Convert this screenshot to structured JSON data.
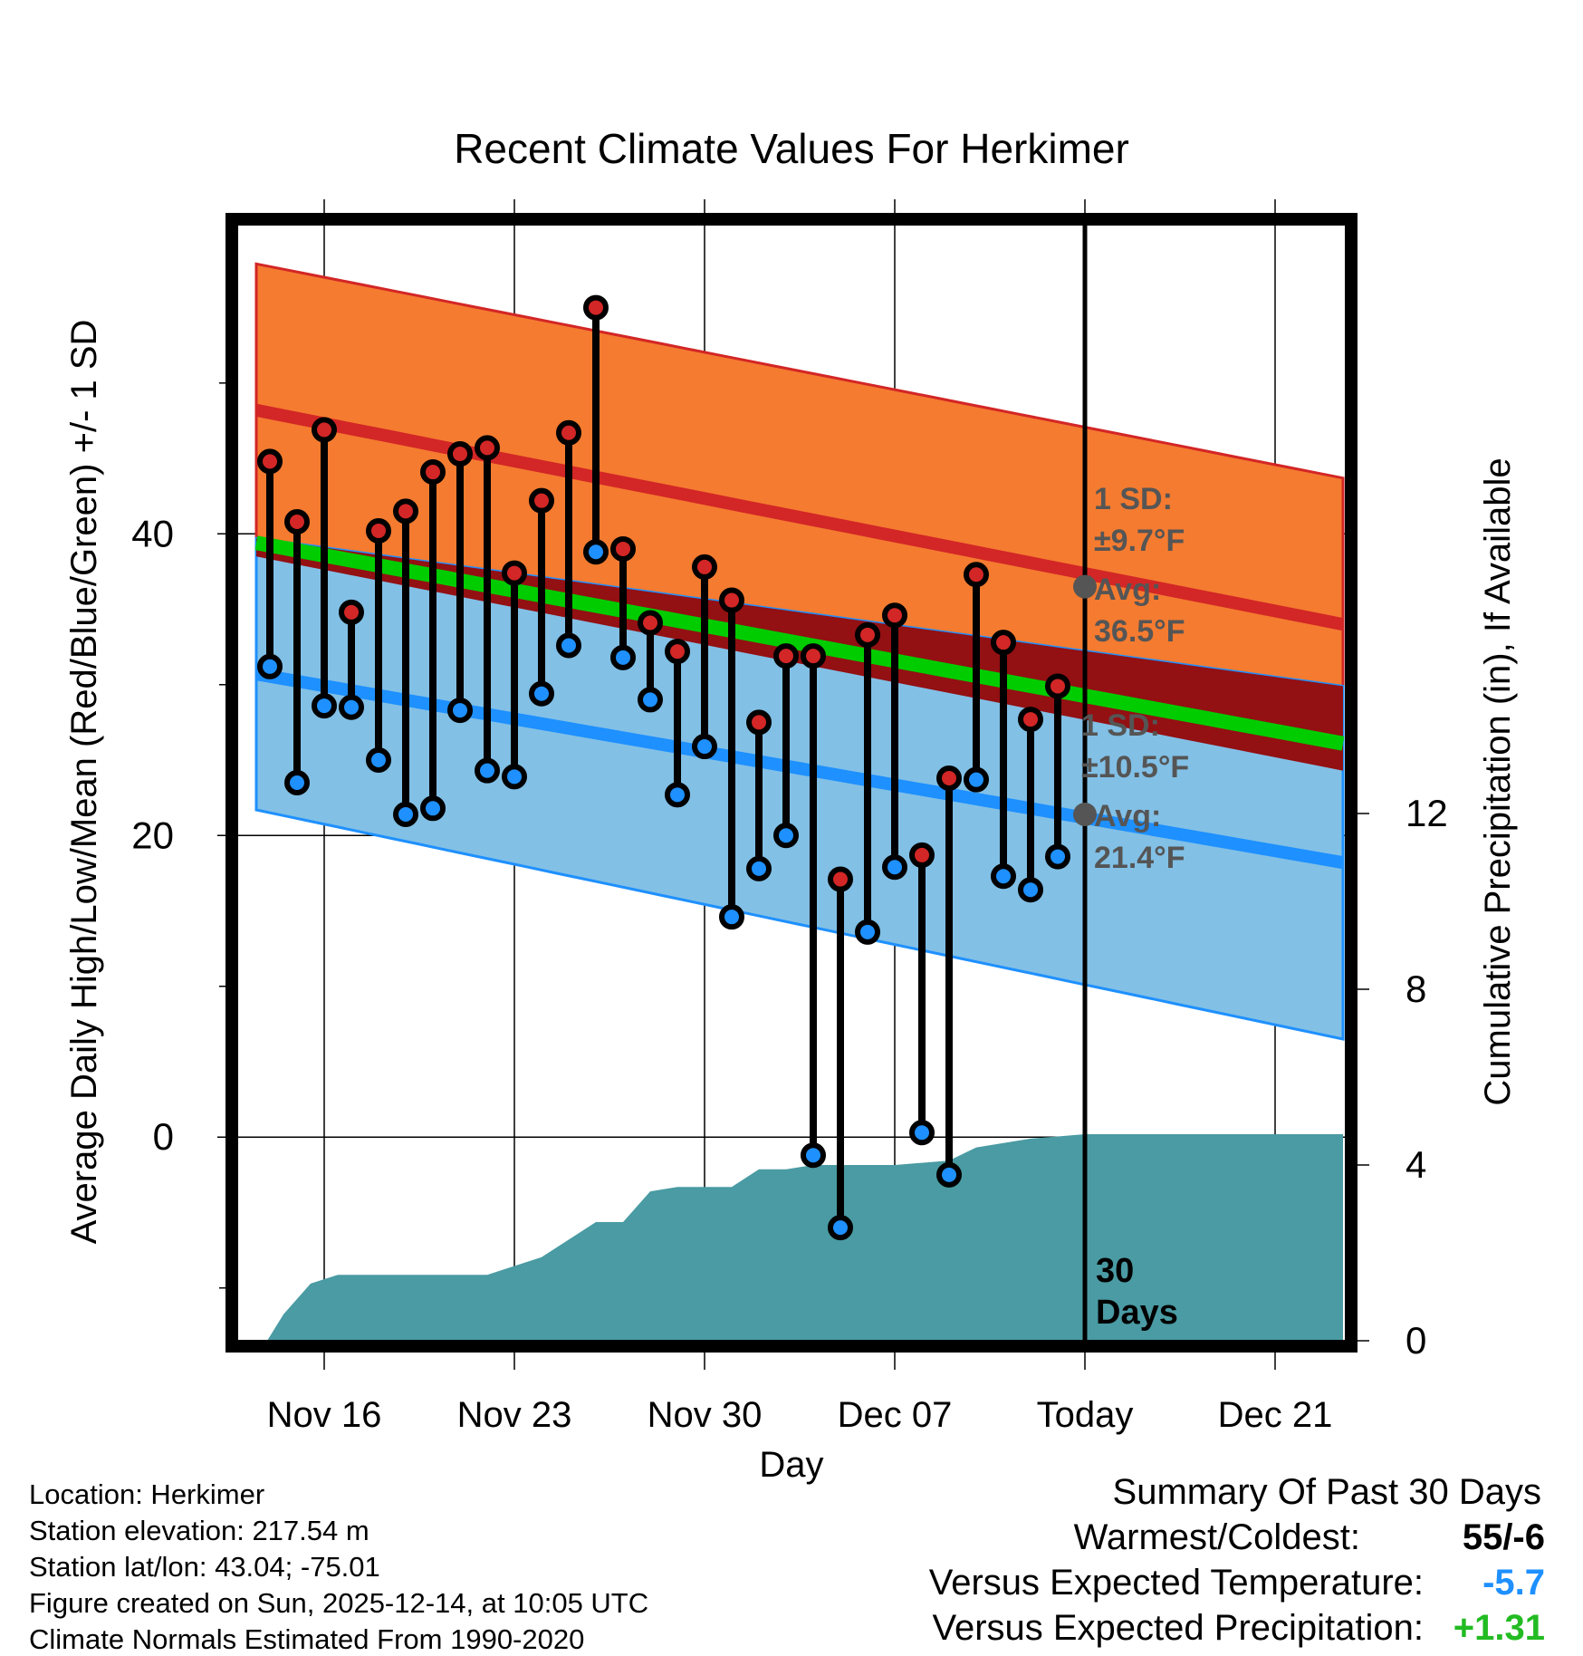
{
  "chart_data": {
    "type": "line",
    "title": "Recent Climate Values For Herkimer",
    "xlabel": "Day",
    "ylabel_left": "Average Daily High/Low/Mean (Red/Blue/Green) +/- 1 SD",
    "ylabel_right": "Cumulative Precipitation (in), If Available",
    "x_ticks": [
      {
        "day": 16,
        "label": "Nov 16"
      },
      {
        "day": 23,
        "label": "Nov 23"
      },
      {
        "day": 30,
        "label": "Nov 30"
      },
      {
        "day": 37,
        "label": "Dec 07"
      },
      {
        "day": 44,
        "label": "Today"
      },
      {
        "day": 51,
        "label": "Dec 21"
      }
    ],
    "xlim": [
      12.8,
      53.6
    ],
    "y_ticks_left": [
      0,
      20,
      40
    ],
    "ylim_left": [
      -13.5,
      60.5
    ],
    "y_ticks_right": [
      0,
      4,
      8,
      12
    ],
    "ylim_right": [
      0,
      25.4
    ],
    "grid": true,
    "today_day": 44,
    "today_label": [
      "30",
      "Days"
    ],
    "normals": {
      "start_day": 13.5,
      "end_day": 53.5,
      "high_avg": [
        48.2,
        34.0
      ],
      "high_sd": [
        9.7,
        9.7
      ],
      "low_avg": [
        30.7,
        18.2
      ],
      "low_sd": [
        9.0,
        11.7
      ],
      "mean_avg": [
        39.4,
        26.1
      ]
    },
    "annotations": {
      "high": {
        "sd_label": "1 SD:",
        "sd_value": "±9.7°F",
        "avg_label": "Avg:",
        "avg_value": "36.5°F",
        "avg": 36.5
      },
      "low": {
        "sd_label": "1 SD:",
        "sd_value": "±10.5°F",
        "avg_label": "Avg:",
        "avg_value": "21.4°F",
        "avg": 21.4
      }
    },
    "series": [
      {
        "name": "Daily High/Low",
        "days": [
          14,
          15,
          16,
          17,
          18,
          19,
          20,
          21,
          22,
          23,
          24,
          25,
          26,
          27,
          28,
          29,
          30,
          31,
          32,
          33,
          34,
          35,
          36,
          37,
          38,
          39,
          40,
          41,
          42,
          43
        ],
        "highs": [
          44.8,
          40.8,
          46.9,
          34.8,
          40.2,
          41.5,
          44.1,
          45.3,
          45.7,
          37.4,
          42.2,
          46.7,
          55.0,
          39.0,
          34.1,
          32.2,
          37.8,
          35.6,
          27.5,
          31.9,
          31.9,
          17.1,
          33.3,
          34.6,
          18.7,
          23.8,
          37.3,
          32.8,
          27.7,
          29.9
        ],
        "lows": [
          31.2,
          23.5,
          28.6,
          28.5,
          25.0,
          21.4,
          21.8,
          28.3,
          24.3,
          23.9,
          29.4,
          32.6,
          38.8,
          31.8,
          29.0,
          22.7,
          25.9,
          14.6,
          17.8,
          20.0,
          -1.2,
          -6.0,
          13.6,
          17.9,
          0.3,
          -2.5,
          23.7,
          17.3,
          16.4,
          18.6
        ]
      },
      {
        "name": "Cumulative Precipitation (in)",
        "points": [
          [
            13.5,
            -0.4
          ],
          [
            14.5,
            0.6
          ],
          [
            15.5,
            1.3
          ],
          [
            16.5,
            1.5
          ],
          [
            19,
            1.5
          ],
          [
            22,
            1.5
          ],
          [
            23,
            1.7
          ],
          [
            24,
            1.9
          ],
          [
            25,
            2.3
          ],
          [
            26,
            2.7
          ],
          [
            27,
            2.7
          ],
          [
            28,
            3.4
          ],
          [
            29,
            3.5
          ],
          [
            30,
            3.5
          ],
          [
            31,
            3.5
          ],
          [
            32,
            3.9
          ],
          [
            33,
            3.9
          ],
          [
            34,
            4.0
          ],
          [
            35,
            4.0
          ],
          [
            36,
            4.0
          ],
          [
            37,
            4.0
          ],
          [
            38,
            4.05
          ],
          [
            39,
            4.1
          ],
          [
            40,
            4.4
          ],
          [
            41,
            4.5
          ],
          [
            42,
            4.6
          ],
          [
            43,
            4.65
          ],
          [
            44,
            4.7
          ],
          [
            53.5,
            4.7
          ]
        ]
      }
    ]
  },
  "footer_left": [
    "Location: Herkimer",
    "Station elevation: 217.54 m",
    "Station lat/lon: 43.04; -75.01",
    "Figure created on Sun, 2025-12-14, at 10:05 UTC",
    "Climate Normals Estimated From 1990-2020"
  ],
  "summary": {
    "title": "Summary Of Past 30 Days",
    "rows": [
      {
        "label": "Warmest/Coldest:",
        "value": "55/-6",
        "color": "#000000"
      },
      {
        "label": "Versus Expected Temperature:",
        "value": "-5.7",
        "color": "#1e90ff"
      },
      {
        "label": "Versus Expected Precipitation:",
        "value": "+1.31",
        "color": "#22bb22"
      }
    ]
  },
  "colors": {
    "high_band": "#f47b30",
    "high_line": "#d32626",
    "low_band": "#82c0e6",
    "low_line": "#1e90ff",
    "overlap_band": "#931013",
    "mean_line": "#00cc00",
    "precip_fill": "#4a9ba3",
    "annotation_text": "#555555",
    "high_dot": "#d32626",
    "low_dot": "#1e90ff"
  }
}
